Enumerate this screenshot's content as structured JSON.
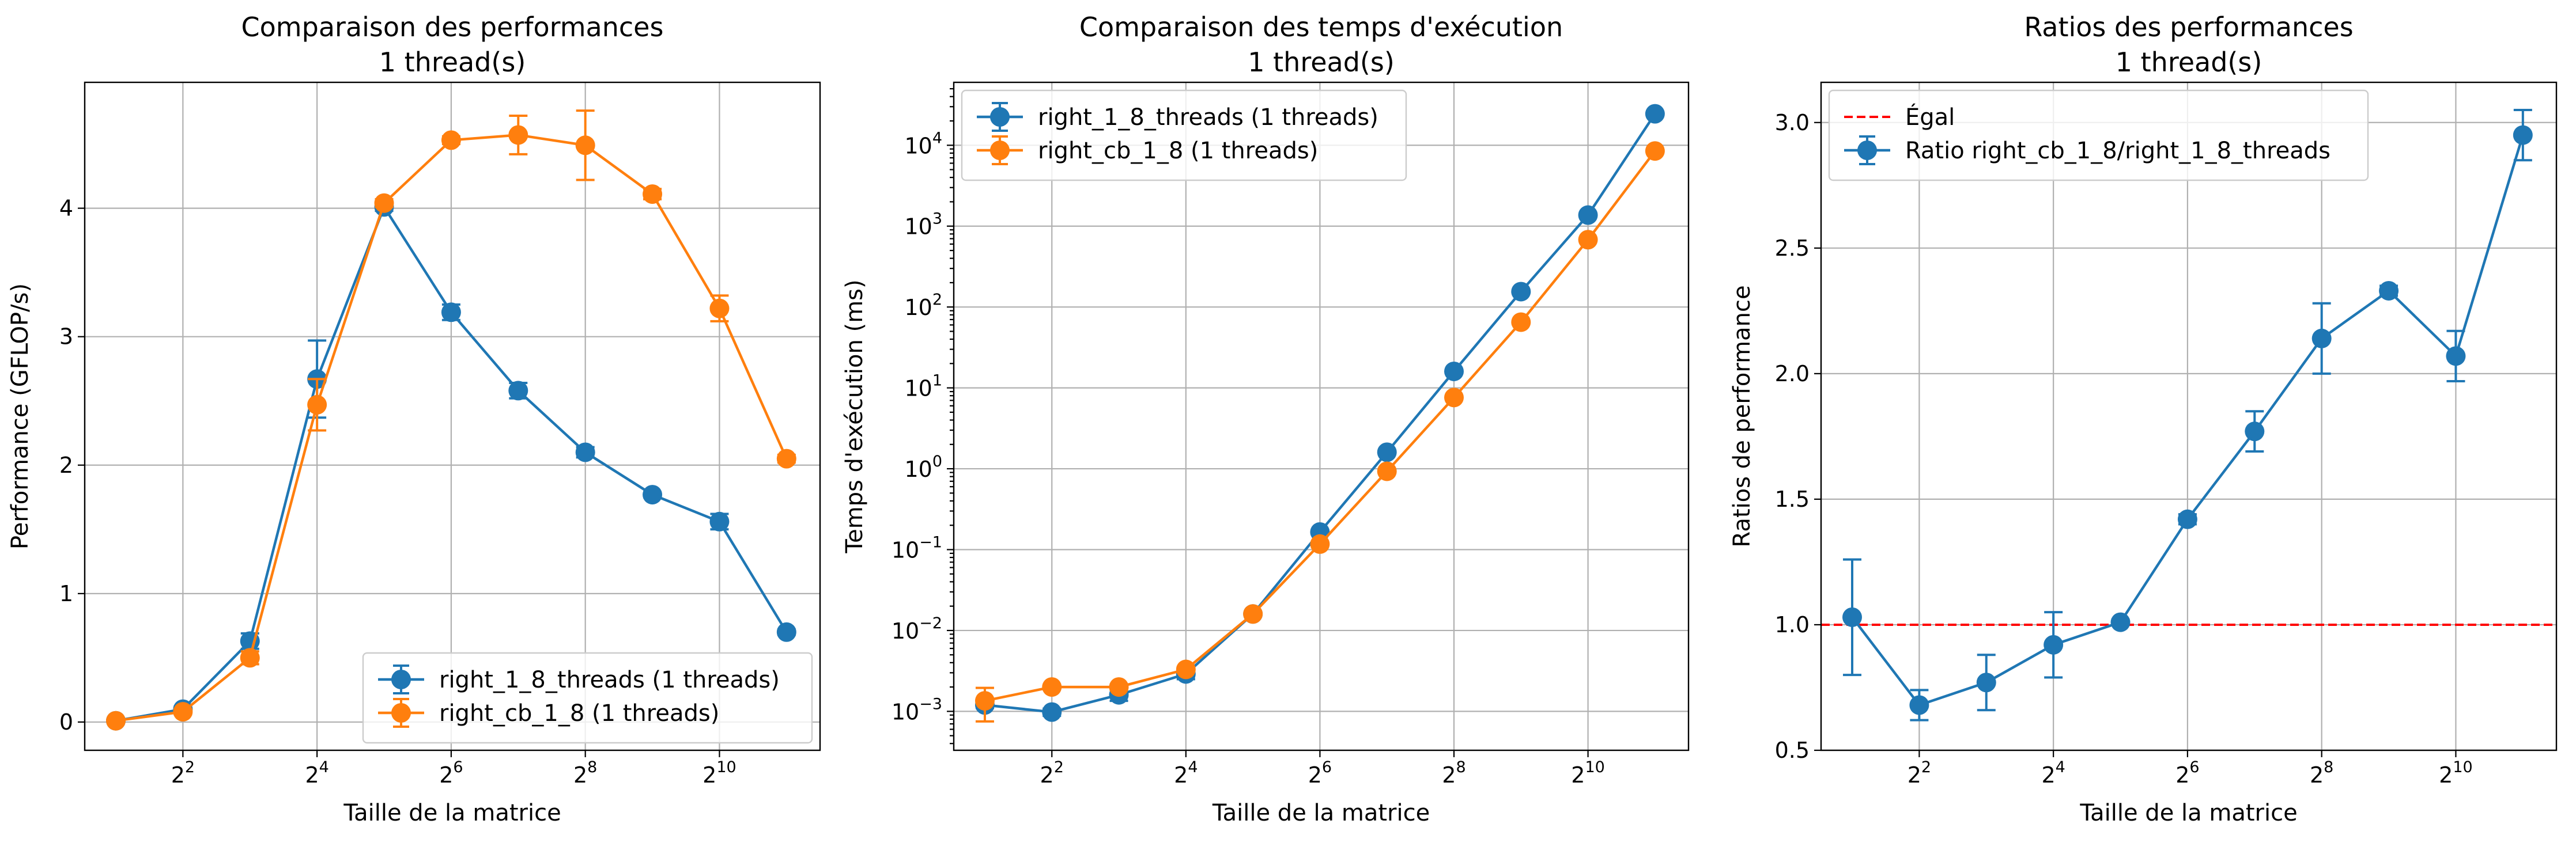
{
  "chart_data": [
    {
      "type": "line",
      "title": "Comparaison des performances",
      "subtitle": "1 thread(s)",
      "xlabel": "Taille de la matrice",
      "ylabel": "Performance (GFLOP/s)",
      "xscale": "log2",
      "yscale": "linear",
      "xlim": [
        1.45,
        2896
      ],
      "ylim": [
        -0.22,
        4.98
      ],
      "x_ticks": [
        4,
        16,
        64,
        256,
        1024
      ],
      "x_tick_labels": [
        [
          "2",
          "2"
        ],
        [
          "2",
          "4"
        ],
        [
          "2",
          "6"
        ],
        [
          "2",
          "8"
        ],
        [
          "2",
          "10"
        ]
      ],
      "y_ticks": [
        0,
        1,
        2,
        3,
        4
      ],
      "y_tick_labels": [
        "0",
        "1",
        "2",
        "3",
        "4"
      ],
      "grid": true,
      "legend_position": "lower right",
      "x": [
        2,
        4,
        8,
        16,
        32,
        64,
        128,
        256,
        512,
        1024,
        2048
      ],
      "series": [
        {
          "name": "right_1_8_threads (1 threads)",
          "color": "#1f77b4",
          "values": [
            0.01,
            0.1,
            0.63,
            2.67,
            4.01,
            3.19,
            2.58,
            2.1,
            1.77,
            1.56,
            0.7
          ],
          "errors": [
            0.01,
            0.02,
            0.06,
            0.3,
            0.03,
            0.06,
            0.06,
            0.04,
            0.02,
            0.06,
            0.02
          ]
        },
        {
          "name": "right_cb_1_8 (1 threads)",
          "color": "#ff7f0e",
          "values": [
            0.01,
            0.08,
            0.5,
            2.47,
            4.04,
            4.53,
            4.57,
            4.49,
            4.11,
            3.22,
            2.05
          ],
          "errors": [
            0.01,
            0.02,
            0.05,
            0.2,
            0.03,
            0.03,
            0.15,
            0.27,
            0.04,
            0.1,
            0.03
          ]
        }
      ]
    },
    {
      "type": "line",
      "title": "Comparaison des temps d'exécution",
      "subtitle": "1 thread(s)",
      "xlabel": "Taille de la matrice",
      "ylabel": "Temps d'exécution (ms)",
      "xscale": "log2",
      "yscale": "log10",
      "xlim": [
        1.45,
        2896
      ],
      "ylim": [
        0.00033,
        60000
      ],
      "x_ticks": [
        4,
        16,
        64,
        256,
        1024
      ],
      "x_tick_labels": [
        [
          "2",
          "2"
        ],
        [
          "2",
          "4"
        ],
        [
          "2",
          "6"
        ],
        [
          "2",
          "8"
        ],
        [
          "2",
          "10"
        ]
      ],
      "y_ticks": [
        0.001,
        0.01,
        0.1,
        1,
        10,
        100,
        1000,
        10000
      ],
      "y_tick_labels": [
        [
          "10",
          "−3"
        ],
        [
          "10",
          "−2"
        ],
        [
          "10",
          "−1"
        ],
        [
          "10",
          "0"
        ],
        [
          "10",
          "1"
        ],
        [
          "10",
          "2"
        ],
        [
          "10",
          "3"
        ],
        [
          "10",
          "4"
        ]
      ],
      "grid": true,
      "legend_position": "upper left",
      "x": [
        2,
        4,
        8,
        16,
        32,
        64,
        128,
        256,
        512,
        1024,
        2048
      ],
      "series": [
        {
          "name": "right_1_8_threads (1 threads)",
          "color": "#1f77b4",
          "values": [
            0.0012,
            0.00098,
            0.0016,
            0.0029,
            0.016,
            0.165,
            1.6,
            16,
            155,
            1370,
            24500
          ],
          "errors": [
            0.0001,
            0.0001,
            0.00025,
            0.0004,
            0.001,
            0.01,
            0.08,
            0.6,
            5,
            60,
            800
          ]
        },
        {
          "name": "right_cb_1_8 (1 threads)",
          "color": "#ff7f0e",
          "values": [
            0.00135,
            0.002,
            0.002,
            0.0033,
            0.016,
            0.117,
            0.93,
            7.6,
            65,
            680,
            8500
          ],
          "errors": [
            0.0006,
            0.0001,
            0.00015,
            0.0002,
            0.001,
            0.005,
            0.04,
            0.3,
            2,
            20,
            300
          ]
        }
      ]
    },
    {
      "type": "line",
      "title": "Ratios des performances",
      "subtitle": "1 thread(s)",
      "xlabel": "Taille de la matrice",
      "ylabel": "Ratios de performance",
      "xscale": "log2",
      "yscale": "linear",
      "xlim": [
        1.45,
        2896
      ],
      "ylim": [
        0.5,
        3.16
      ],
      "x_ticks": [
        4,
        16,
        64,
        256,
        1024
      ],
      "x_tick_labels": [
        [
          "2",
          "2"
        ],
        [
          "2",
          "4"
        ],
        [
          "2",
          "6"
        ],
        [
          "2",
          "8"
        ],
        [
          "2",
          "10"
        ]
      ],
      "y_ticks": [
        0.5,
        1.0,
        1.5,
        2.0,
        2.5,
        3.0
      ],
      "y_tick_labels": [
        "0.5",
        "1.0",
        "1.5",
        "2.0",
        "2.5",
        "3.0"
      ],
      "grid": true,
      "legend_position": "upper left",
      "reference_line": {
        "name": "Égal",
        "y": 1.0,
        "color": "#ff0000",
        "style": "dashed"
      },
      "x": [
        2,
        4,
        8,
        16,
        32,
        64,
        128,
        256,
        512,
        1024,
        2048
      ],
      "series": [
        {
          "name": "Ratio right_cb_1_8/right_1_8_threads",
          "color": "#1f77b4",
          "values": [
            1.03,
            0.68,
            0.77,
            0.92,
            1.01,
            1.42,
            1.77,
            2.14,
            2.33,
            2.07,
            2.95
          ],
          "errors": [
            0.23,
            0.06,
            0.11,
            0.13,
            0.01,
            0.02,
            0.08,
            0.14,
            0.02,
            0.1,
            0.1
          ]
        }
      ]
    }
  ]
}
